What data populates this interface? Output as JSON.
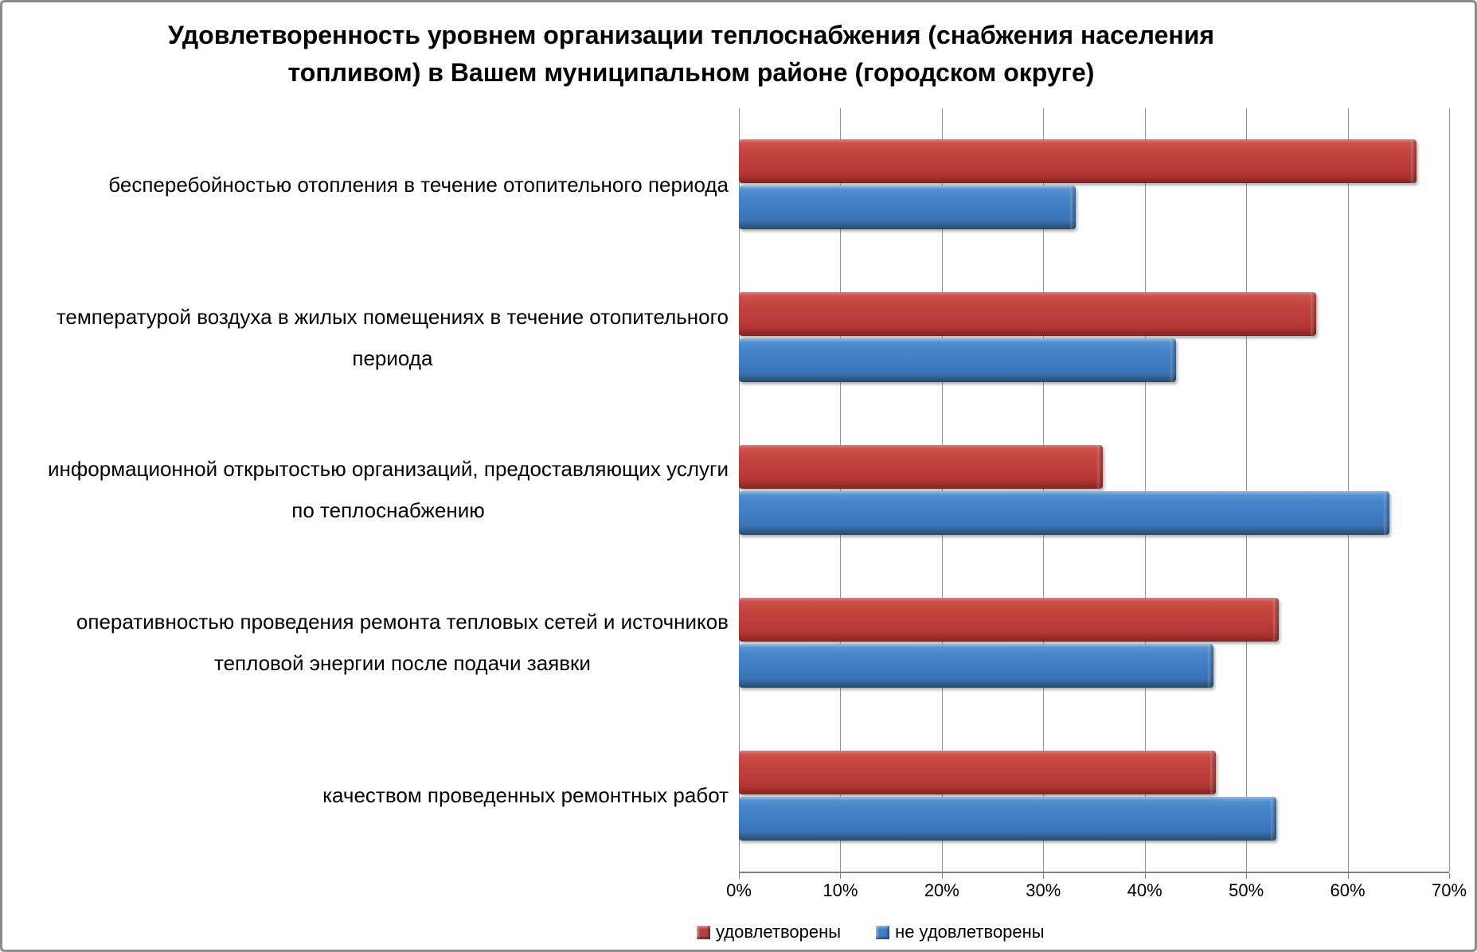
{
  "title": {
    "line1": "Удовлетворенность уровнем организации теплоснабжения (снабжения населения",
    "line2": "топливом) в Вашем муниципальном районе (городском округе)"
  },
  "chart_data": {
    "type": "bar",
    "orientation": "horizontal",
    "title": "Удовлетворенность уровнем организации теплоснабжения (снабжения населения топливом) в Вашем муниципальном районе (городском округе)",
    "categories": [
      "бесперебойностью  отопления в течение отопительного периода",
      "температурой  воздуха в жилых помещениях в течение отопительного\nпериода",
      "информационной открытостью  организаций, предоставляющих услуги\nпо теплоснабжению",
      "оперативностью проведения ремонта тепловых сетей и источников\nтепловой энергии после подачи заявки",
      "качеством проведенных ремонтных работ"
    ],
    "series": [
      {
        "name": "удовлетворены",
        "color": "#BF3E3B",
        "values": [
          66.8,
          56.9,
          35.9,
          53.2,
          47.0
        ]
      },
      {
        "name": "не удовлетворены",
        "color": "#3F7DC4",
        "values": [
          33.2,
          43.1,
          64.1,
          46.8,
          53.0
        ]
      }
    ],
    "xlabel": "",
    "ylabel": "",
    "xlim": [
      0,
      70
    ],
    "x_ticks": [
      "0%",
      "10%",
      "20%",
      "30%",
      "40%",
      "50%",
      "60%",
      "70%"
    ],
    "grid": "vertical",
    "legend_position": "bottom"
  }
}
